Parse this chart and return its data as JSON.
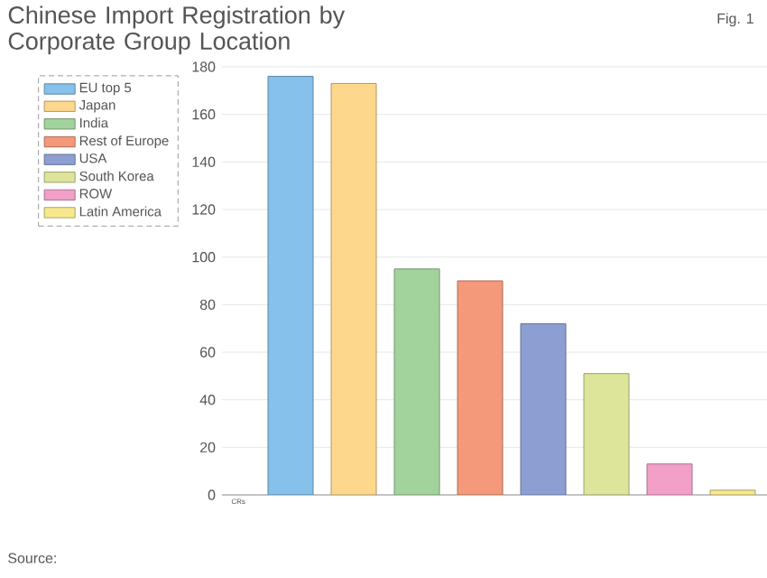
{
  "chart_data": {
    "type": "bar",
    "title": "Chinese Import Registration by Corporate Group Location",
    "xlabel": "CRs",
    "annotations": [
      "Fig. 1",
      "Source:"
    ],
    "categories": [
      null
    ],
    "series": [
      {
        "name": "EU top 5",
        "color": "#85c1ea",
        "values": [
          176
        ]
      },
      {
        "name": "Japan",
        "color": "#fdd78c",
        "values": [
          173
        ]
      },
      {
        "name": "India",
        "color": "#a3d39c",
        "values": [
          95
        ]
      },
      {
        "name": "Rest of Europe",
        "color": "#f4997a",
        "values": [
          90
        ]
      },
      {
        "name": "USA",
        "color": "#8d9fd2",
        "values": [
          72
        ]
      },
      {
        "name": "South Korea",
        "color": "#dde59a",
        "values": [
          51
        ]
      },
      {
        "name": "ROW",
        "color": "#f2a0c8",
        "values": [
          13
        ]
      },
      {
        "name": "Latin America",
        "color": "#f7e88e",
        "values": [
          2
        ]
      }
    ],
    "ylim": [
      0,
      180
    ],
    "yticks": [
      0,
      20,
      40,
      60,
      80,
      100,
      120,
      140,
      160,
      180
    ],
    "grid": "y",
    "legend": "left"
  }
}
